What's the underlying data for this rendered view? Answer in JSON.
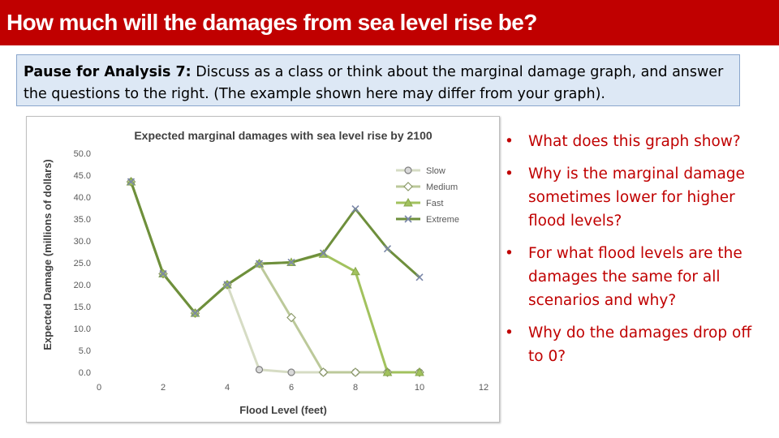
{
  "title": "How much will the damages from sea level rise be?",
  "prompt": {
    "bold_label": "Pause for Analysis 7:",
    "text": " Discuss as a class or think about the marginal damage graph, and answer the questions to the right. (The example shown here may differ from your graph)."
  },
  "questions": [
    "What does this graph show?",
    "Why is the marginal damage sometimes lower for higher flood levels?",
    "For what flood levels are the damages the same for all scenarios and why?",
    "Why do the damages drop off to 0?"
  ],
  "bullet": "•",
  "colors": {
    "title_bg": "#c00000",
    "question_text": "#c00000",
    "prompt_bg": "#dde8f5",
    "slow": "#d6dcc4",
    "medium": "#bcc99a",
    "fast": "#a2c25e",
    "extreme": "#6e8f3c"
  },
  "chart_data": {
    "type": "line",
    "title": "Expected marginal damages with sea level rise by 2100",
    "xlabel": "Flood Level (feet)",
    "ylabel": "Expected  Damage (millions of dollars)",
    "xlim": [
      0,
      12
    ],
    "ylim": [
      0,
      50
    ],
    "x_ticks": [
      0,
      2,
      4,
      6,
      8,
      10,
      12
    ],
    "y_ticks": [
      "0.0",
      "5.0",
      "10.0",
      "15.0",
      "20.0",
      "25.0",
      "30.0",
      "35.0",
      "40.0",
      "45.0",
      "50.0"
    ],
    "grid": false,
    "legend_position": "right",
    "x": [
      1,
      2,
      3,
      4,
      5,
      6,
      7,
      8,
      9,
      10
    ],
    "series": [
      {
        "name": "Slow",
        "marker": "circle",
        "color": "#d6dcc4",
        "values": [
          43.5,
          22.5,
          13.5,
          20.0,
          0.6,
          0.0,
          0.0,
          0.0,
          0.0,
          0.0
        ]
      },
      {
        "name": "Medium",
        "marker": "diamond",
        "color": "#bcc99a",
        "values": [
          43.5,
          22.5,
          13.5,
          20.0,
          24.8,
          12.5,
          0.0,
          0.0,
          0.0,
          0.0
        ]
      },
      {
        "name": "Fast",
        "marker": "triangle",
        "color": "#a2c25e",
        "values": [
          43.5,
          22.5,
          13.5,
          20.0,
          24.8,
          25.1,
          27.0,
          23.0,
          0.0,
          0.0
        ]
      },
      {
        "name": "Extreme",
        "marker": "x",
        "color": "#6e8f3c",
        "values": [
          43.5,
          22.5,
          13.5,
          20.0,
          24.8,
          25.1,
          27.2,
          37.3,
          28.2,
          21.7
        ]
      }
    ]
  }
}
